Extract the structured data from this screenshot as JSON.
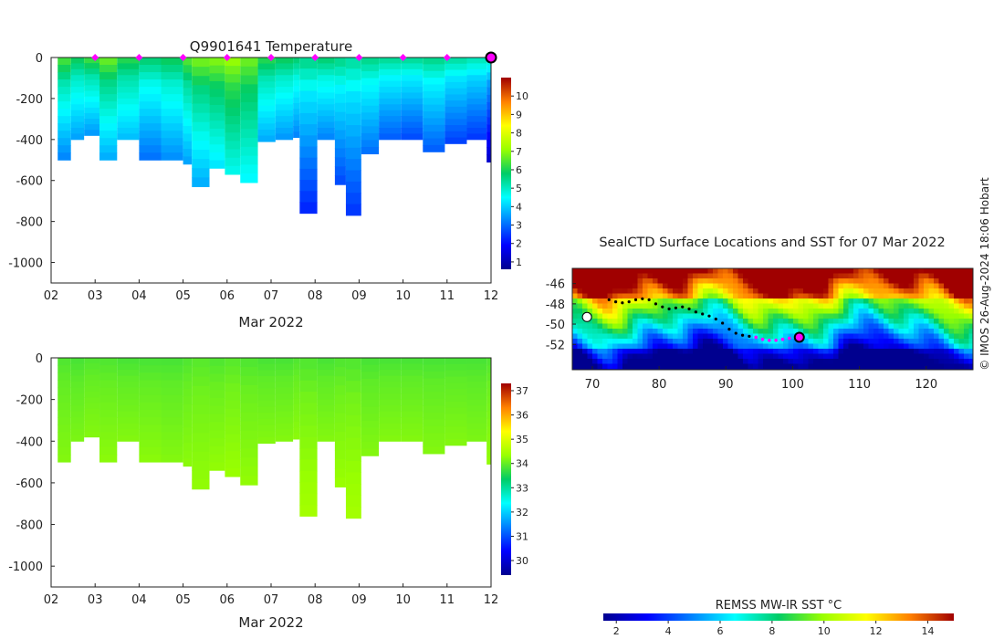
{
  "chart_data": [
    {
      "type": "heatmap",
      "title": "Q9901641  Temperature",
      "xlabel": "Mar 2022",
      "x_ticks": [
        "02",
        "03",
        "04",
        "05",
        "06",
        "07",
        "08",
        "09",
        "10",
        "11",
        "12"
      ],
      "y_ticks": [
        0,
        -200,
        -400,
        -600,
        -800,
        -1000
      ],
      "ylim": [
        -1100,
        0
      ],
      "xlim": [
        2,
        12
      ],
      "colorbar": {
        "ticks": [
          1,
          2,
          3,
          4,
          5,
          6,
          7,
          8,
          9,
          10
        ],
        "range": [
          0.6,
          11
        ]
      },
      "surface_markers_day": [
        3,
        4,
        5,
        6,
        7,
        8,
        9,
        10,
        11
      ],
      "current_position_day": 12,
      "profiles": [
        {
          "day": 2.15,
          "depth": 500,
          "surface": 6.5,
          "deep": 3.2
        },
        {
          "day": 2.45,
          "depth": 400,
          "surface": 6.0,
          "deep": 3.5
        },
        {
          "day": 2.75,
          "depth": 380,
          "surface": 6.4,
          "deep": 3.4
        },
        {
          "day": 3.1,
          "depth": 500,
          "surface": 6.8,
          "deep": 3.6
        },
        {
          "day": 3.5,
          "depth": 400,
          "surface": 6.2,
          "deep": 3.8
        },
        {
          "day": 4.0,
          "depth": 500,
          "surface": 5.8,
          "deep": 3.0
        },
        {
          "day": 4.5,
          "depth": 500,
          "surface": 6.0,
          "deep": 3.3
        },
        {
          "day": 5.0,
          "depth": 520,
          "surface": 6.6,
          "deep": 3.5
        },
        {
          "day": 5.2,
          "depth": 630,
          "surface": 6.9,
          "deep": 3.6
        },
        {
          "day": 5.6,
          "depth": 540,
          "surface": 7.0,
          "deep": 4.2
        },
        {
          "day": 5.95,
          "depth": 570,
          "surface": 7.2,
          "deep": 4.6
        },
        {
          "day": 6.3,
          "depth": 610,
          "surface": 6.8,
          "deep": 4.4
        },
        {
          "day": 6.7,
          "depth": 410,
          "surface": 6.2,
          "deep": 3.6
        },
        {
          "day": 7.1,
          "depth": 400,
          "surface": 6.0,
          "deep": 3.4
        },
        {
          "day": 7.5,
          "depth": 390,
          "surface": 5.8,
          "deep": 3.2
        },
        {
          "day": 7.65,
          "depth": 760,
          "surface": 5.6,
          "deep": 2.2
        },
        {
          "day": 8.05,
          "depth": 400,
          "surface": 5.8,
          "deep": 3.2
        },
        {
          "day": 8.45,
          "depth": 620,
          "surface": 5.6,
          "deep": 2.6
        },
        {
          "day": 8.7,
          "depth": 770,
          "surface": 5.4,
          "deep": 2.4
        },
        {
          "day": 9.05,
          "depth": 470,
          "surface": 5.6,
          "deep": 3.0
        },
        {
          "day": 9.45,
          "depth": 400,
          "surface": 5.5,
          "deep": 2.8
        },
        {
          "day": 9.95,
          "depth": 400,
          "surface": 5.5,
          "deep": 2.6
        },
        {
          "day": 10.45,
          "depth": 460,
          "surface": 5.6,
          "deep": 2.8
        },
        {
          "day": 10.95,
          "depth": 420,
          "surface": 5.4,
          "deep": 2.5
        },
        {
          "day": 11.45,
          "depth": 400,
          "surface": 5.2,
          "deep": 2.4
        },
        {
          "day": 11.9,
          "depth": 510,
          "surface": 5.0,
          "deep": 1.2
        }
      ]
    },
    {
      "type": "heatmap",
      "title": "",
      "xlabel": "Mar 2022",
      "x_ticks": [
        "02",
        "03",
        "04",
        "05",
        "06",
        "07",
        "08",
        "09",
        "10",
        "11",
        "12"
      ],
      "y_ticks": [
        0,
        -200,
        -400,
        -600,
        -800,
        -1000
      ],
      "ylim": [
        -1100,
        0
      ],
      "xlim": [
        2,
        12
      ],
      "colorbar": {
        "ticks": [
          30,
          31,
          32,
          33,
          34,
          35,
          36,
          37
        ],
        "range": [
          29.4,
          37.3
        ]
      },
      "profiles": [
        {
          "day": 2.15,
          "depth": 500,
          "surface": 33.85,
          "deep": 34.2
        },
        {
          "day": 2.45,
          "depth": 400,
          "surface": 33.8,
          "deep": 34.15
        },
        {
          "day": 2.75,
          "depth": 380,
          "surface": 33.85,
          "deep": 34.2
        },
        {
          "day": 3.1,
          "depth": 500,
          "surface": 33.85,
          "deep": 34.25
        },
        {
          "day": 3.5,
          "depth": 400,
          "surface": 33.8,
          "deep": 34.2
        },
        {
          "day": 4.0,
          "depth": 500,
          "surface": 33.8,
          "deep": 34.25
        },
        {
          "day": 4.5,
          "depth": 500,
          "surface": 33.8,
          "deep": 34.2
        },
        {
          "day": 5.0,
          "depth": 520,
          "surface": 33.85,
          "deep": 34.25
        },
        {
          "day": 5.2,
          "depth": 630,
          "surface": 33.9,
          "deep": 34.3
        },
        {
          "day": 5.6,
          "depth": 540,
          "surface": 33.85,
          "deep": 34.3
        },
        {
          "day": 5.95,
          "depth": 570,
          "surface": 33.9,
          "deep": 34.35
        },
        {
          "day": 6.3,
          "depth": 610,
          "surface": 33.85,
          "deep": 34.3
        },
        {
          "day": 6.7,
          "depth": 410,
          "surface": 33.8,
          "deep": 34.2
        },
        {
          "day": 7.1,
          "depth": 400,
          "surface": 33.8,
          "deep": 34.2
        },
        {
          "day": 7.5,
          "depth": 390,
          "surface": 33.85,
          "deep": 34.25
        },
        {
          "day": 7.65,
          "depth": 760,
          "surface": 33.85,
          "deep": 34.45
        },
        {
          "day": 8.05,
          "depth": 400,
          "surface": 33.8,
          "deep": 34.2
        },
        {
          "day": 8.45,
          "depth": 620,
          "surface": 33.85,
          "deep": 34.35
        },
        {
          "day": 8.7,
          "depth": 770,
          "surface": 33.85,
          "deep": 34.45
        },
        {
          "day": 9.05,
          "depth": 470,
          "surface": 33.8,
          "deep": 34.2
        },
        {
          "day": 9.45,
          "depth": 400,
          "surface": 33.8,
          "deep": 34.2
        },
        {
          "day": 9.95,
          "depth": 400,
          "surface": 33.8,
          "deep": 34.2
        },
        {
          "day": 10.45,
          "depth": 460,
          "surface": 33.8,
          "deep": 34.2
        },
        {
          "day": 10.95,
          "depth": 420,
          "surface": 33.8,
          "deep": 34.2
        },
        {
          "day": 11.45,
          "depth": 400,
          "surface": 33.8,
          "deep": 34.15
        },
        {
          "day": 11.9,
          "depth": 510,
          "surface": 33.85,
          "deep": 34.3
        }
      ]
    },
    {
      "type": "heatmap",
      "title": "SealCTD Surface Locations and SST for 07 Mar 2022",
      "x_ticks": [
        70,
        80,
        90,
        100,
        110,
        120
      ],
      "y_ticks": [
        -46,
        -48,
        -50,
        -52
      ],
      "xlim": [
        67,
        127
      ],
      "ylim": [
        -54.5,
        -44.5
      ],
      "colorbar": {
        "label": "REMSS MW-IR SST °C",
        "ticks": [
          2,
          4,
          6,
          8,
          10,
          12,
          14
        ],
        "range": [
          1.5,
          15
        ]
      },
      "track": [
        [
          72.5,
          -47.6
        ],
        [
          73.5,
          -47.8
        ],
        [
          74.5,
          -47.9
        ],
        [
          75.5,
          -47.8
        ],
        [
          76.5,
          -47.6
        ],
        [
          77.5,
          -47.5
        ],
        [
          78.5,
          -47.6
        ],
        [
          79.5,
          -48.0
        ],
        [
          80.5,
          -48.3
        ],
        [
          81.5,
          -48.5
        ],
        [
          82.5,
          -48.4
        ],
        [
          83.5,
          -48.3
        ],
        [
          84.5,
          -48.5
        ],
        [
          85.5,
          -48.8
        ],
        [
          86.5,
          -49.0
        ],
        [
          87.5,
          -49.2
        ],
        [
          88.5,
          -49.5
        ],
        [
          89.5,
          -49.9
        ],
        [
          90.5,
          -50.5
        ],
        [
          91.5,
          -50.9
        ],
        [
          92.5,
          -51.1
        ],
        [
          93.5,
          -51.2
        ],
        [
          94.5,
          -51.3
        ]
      ],
      "track_recent": [
        [
          94.5,
          -51.3
        ],
        [
          95.5,
          -51.5
        ],
        [
          96.5,
          -51.6
        ],
        [
          97.5,
          -51.6
        ],
        [
          98.5,
          -51.5
        ],
        [
          99.5,
          -51.4
        ],
        [
          100.5,
          -51.3
        ]
      ],
      "current_position": [
        101,
        -51.3
      ],
      "island": [
        69.2,
        -49.3
      ]
    }
  ],
  "credit": "© IMOS 26-Aug-2024 18:06 Hobart",
  "colors": {
    "marker": "#ff00ff",
    "track": "#000000",
    "axis": "#222222"
  }
}
